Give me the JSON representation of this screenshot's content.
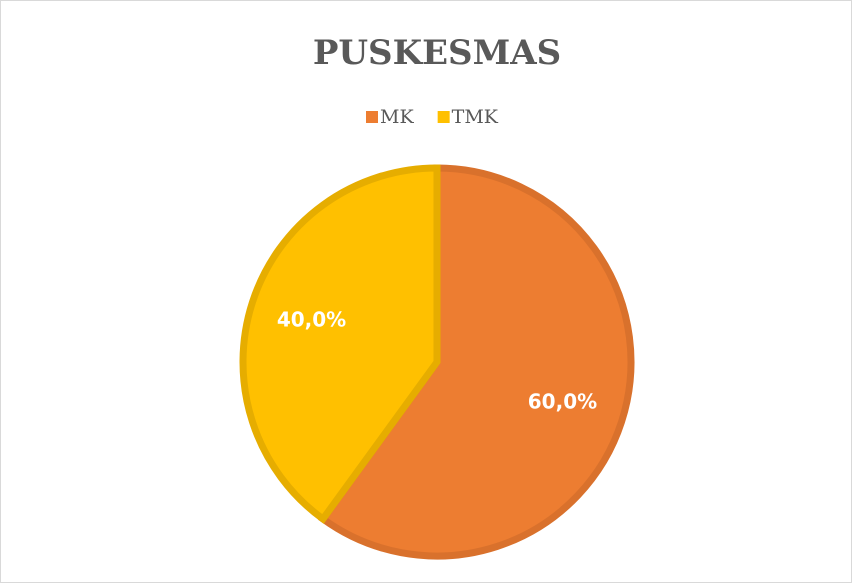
{
  "chart_data": {
    "type": "pie",
    "title": "PUSKESMAS",
    "categories": [
      "MK",
      "TMK"
    ],
    "values": [
      60,
      40
    ],
    "value_labels": [
      "60,0%",
      "40,0%"
    ],
    "colors": [
      "#ED7D31",
      "#FFC000"
    ],
    "edge_colors": [
      "#D9712C",
      "#E6AD00"
    ],
    "legend": "top"
  }
}
